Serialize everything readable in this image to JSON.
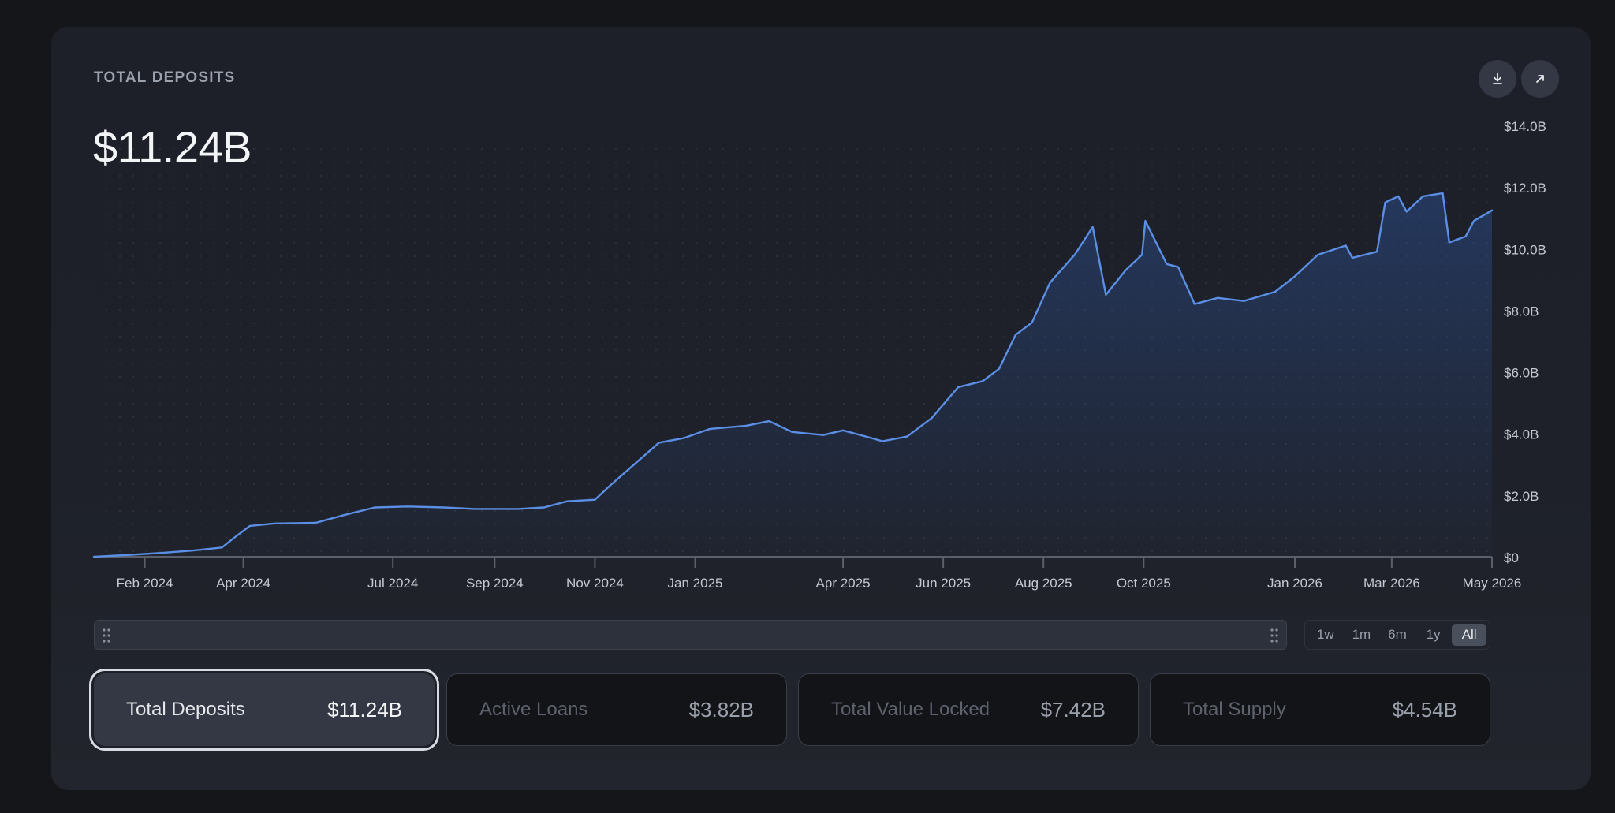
{
  "card": {
    "title": "TOTAL DEPOSITS",
    "value": "$11.24B"
  },
  "icons": {
    "download": "download-icon",
    "expand": "arrow-up-right-icon",
    "grip": "drag-handle-icon"
  },
  "ranges": [
    {
      "label": "1w",
      "active": false
    },
    {
      "label": "1m",
      "active": false
    },
    {
      "label": "6m",
      "active": false
    },
    {
      "label": "1y",
      "active": false
    },
    {
      "label": "All",
      "active": true
    }
  ],
  "metrics": [
    {
      "label": "Total Deposits",
      "value": "$11.24B",
      "active": true
    },
    {
      "label": "Active Loans",
      "value": "$3.82B",
      "active": false
    },
    {
      "label": "Total Value Locked",
      "value": "$7.42B",
      "active": false
    },
    {
      "label": "Total Supply",
      "value": "$4.54B",
      "active": false
    }
  ],
  "colors": {
    "line": "#5b8fe6",
    "background": "#1d2029",
    "accent": "#c8ccd3"
  },
  "chart_data": {
    "type": "area",
    "title": "TOTAL DEPOSITS",
    "xlabel": "",
    "ylabel": "",
    "y_unit": "B USD",
    "ylim": [
      0,
      14
    ],
    "y_ticks": [
      {
        "value": 14,
        "label": "$14.0B"
      },
      {
        "value": 12,
        "label": "$12.0B"
      },
      {
        "value": 10,
        "label": "$10.0B"
      },
      {
        "value": 8,
        "label": "$8.0B"
      },
      {
        "value": 6,
        "label": "$6.0B"
      },
      {
        "value": 4,
        "label": "$4.0B"
      },
      {
        "value": 2,
        "label": "$2.0B"
      },
      {
        "value": 0,
        "label": "$0"
      }
    ],
    "xlim": [
      "2024-01-01",
      "2026-05-01"
    ],
    "x_ticks": [
      {
        "date": "2024-02-01",
        "label": "Feb 2024"
      },
      {
        "date": "2024-04-01",
        "label": "Apr 2024"
      },
      {
        "date": "2024-07-01",
        "label": "Jul 2024"
      },
      {
        "date": "2024-09-01",
        "label": "Sep 2024"
      },
      {
        "date": "2024-11-01",
        "label": "Nov 2024"
      },
      {
        "date": "2025-01-01",
        "label": "Jan 2025"
      },
      {
        "date": "2025-04-01",
        "label": "Apr 2025"
      },
      {
        "date": "2025-06-01",
        "label": "Jun 2025"
      },
      {
        "date": "2025-08-01",
        "label": "Aug 2025"
      },
      {
        "date": "2025-10-01",
        "label": "Oct 2025"
      },
      {
        "date": "2026-01-01",
        "label": "Jan 2026"
      },
      {
        "date": "2026-03-01",
        "label": "Mar 2026"
      },
      {
        "date": "2026-05-01",
        "label": "May 2026"
      }
    ],
    "grid": true,
    "series": [
      {
        "points": [
          [
            "2024-01-01",
            0.0
          ],
          [
            "2024-01-20",
            0.05
          ],
          [
            "2024-02-10",
            0.12
          ],
          [
            "2024-03-01",
            0.2
          ],
          [
            "2024-03-19",
            0.3
          ],
          [
            "2024-03-26",
            0.6
          ],
          [
            "2024-04-05",
            1.0
          ],
          [
            "2024-04-20",
            1.08
          ],
          [
            "2024-05-15",
            1.1
          ],
          [
            "2024-06-01",
            1.35
          ],
          [
            "2024-06-20",
            1.6
          ],
          [
            "2024-07-10",
            1.63
          ],
          [
            "2024-08-01",
            1.6
          ],
          [
            "2024-08-20",
            1.55
          ],
          [
            "2024-09-15",
            1.55
          ],
          [
            "2024-10-01",
            1.6
          ],
          [
            "2024-10-15",
            1.8
          ],
          [
            "2024-11-01",
            1.85
          ],
          [
            "2024-11-10",
            2.3
          ],
          [
            "2024-11-25",
            3.0
          ],
          [
            "2024-12-10",
            3.7
          ],
          [
            "2024-12-25",
            3.85
          ],
          [
            "2025-01-10",
            4.15
          ],
          [
            "2025-02-01",
            4.25
          ],
          [
            "2025-02-15",
            4.4
          ],
          [
            "2025-03-01",
            4.05
          ],
          [
            "2025-03-20",
            3.95
          ],
          [
            "2025-04-01",
            4.1
          ],
          [
            "2025-04-15",
            3.9
          ],
          [
            "2025-04-25",
            3.75
          ],
          [
            "2025-05-10",
            3.9
          ],
          [
            "2025-05-25",
            4.5
          ],
          [
            "2025-06-10",
            5.5
          ],
          [
            "2025-06-25",
            5.7
          ],
          [
            "2025-07-05",
            6.1
          ],
          [
            "2025-07-15",
            7.2
          ],
          [
            "2025-07-25",
            7.6
          ],
          [
            "2025-08-05",
            8.9
          ],
          [
            "2025-08-20",
            9.8
          ],
          [
            "2025-08-31",
            10.7
          ],
          [
            "2025-09-08",
            8.5
          ],
          [
            "2025-09-20",
            9.3
          ],
          [
            "2025-09-30",
            9.8
          ],
          [
            "2025-10-02",
            10.9
          ],
          [
            "2025-10-15",
            9.5
          ],
          [
            "2025-10-22",
            9.4
          ],
          [
            "2025-11-01",
            8.2
          ],
          [
            "2025-11-15",
            8.4
          ],
          [
            "2025-12-01",
            8.3
          ],
          [
            "2025-12-20",
            8.6
          ],
          [
            "2026-01-01",
            9.1
          ],
          [
            "2026-01-15",
            9.8
          ],
          [
            "2026-02-01",
            10.1
          ],
          [
            "2026-02-05",
            9.7
          ],
          [
            "2026-02-20",
            9.9
          ],
          [
            "2026-02-25",
            11.5
          ],
          [
            "2026-03-05",
            11.7
          ],
          [
            "2026-03-10",
            11.2
          ],
          [
            "2026-03-20",
            11.7
          ],
          [
            "2026-04-01",
            11.8
          ],
          [
            "2026-04-05",
            10.2
          ],
          [
            "2026-04-15",
            10.4
          ],
          [
            "2026-04-20",
            10.9
          ],
          [
            "2026-05-01",
            11.24
          ]
        ]
      }
    ]
  }
}
